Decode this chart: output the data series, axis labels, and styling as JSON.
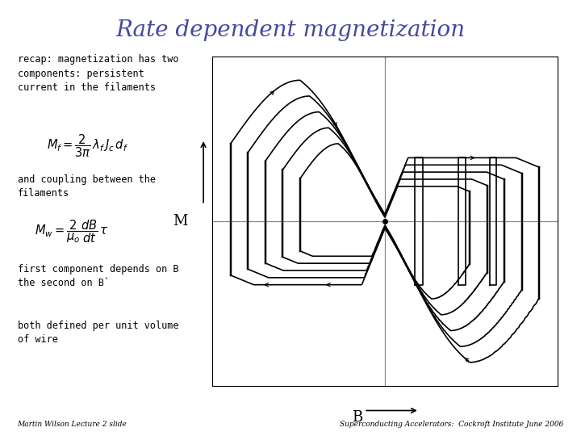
{
  "title": "Rate dependent magnetization",
  "title_color": "#4848a0",
  "title_fontsize": 20,
  "title_style": "italic",
  "bg_color": "#ffffff",
  "left_text_0": "recap: magnetization has two\ncomponents: persistent\ncurrent in the filaments",
  "left_text_1": "and coupling between the\nfilaments",
  "left_text_2": "first component depends on B\nthe second on B`",
  "left_text_3": "both defined per unit volume\nof wire",
  "formula1": "$M_f = \\dfrac{2}{3\\pi}\\,\\lambda_f\\,J_c\\,d_f$",
  "formula2": "$M_w = \\dfrac{2}{\\mu_o}\\dfrac{dB}{dt}\\,\\tau$",
  "xlabel": "B",
  "ylabel": "M",
  "footer_left": "Martin Wilson Lecture 2 slide",
  "footer_right": "Superconducting Accelerators:  Cockroft Institute June 2006"
}
